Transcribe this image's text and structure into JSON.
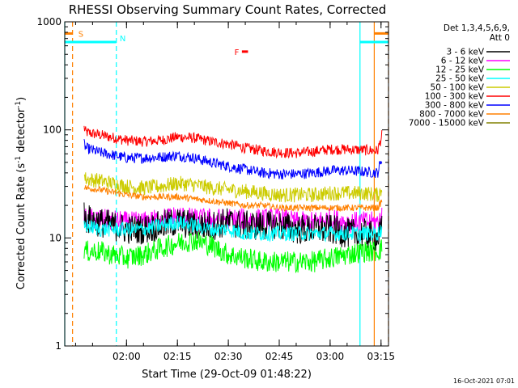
{
  "chart_data": {
    "type": "line",
    "title": "RHESSI Observing Summary Count Rates, Corrected",
    "xlabel": "Start Time (29-Oct-09 01:48:22)",
    "ylabel_main": "Corrected Count Rate (s",
    "ylabel_sup1": "-1",
    "ylabel_mid": " detector",
    "ylabel_sup2": "-1",
    "ylabel_end": ")",
    "y_scale": "log",
    "ylim": [
      1,
      1000
    ],
    "y_ticks": [
      {
        "v": 1,
        "label": "1"
      },
      {
        "v": 10,
        "label": "10"
      },
      {
        "v": 100,
        "label": "100"
      },
      {
        "v": 1000,
        "label": "1000"
      }
    ],
    "xlim_min": [
      1.8,
      97.2
    ],
    "x_ticks": [
      {
        "m": 20,
        "label": "02:00"
      },
      {
        "m": 35,
        "label": "02:15"
      },
      {
        "m": 50,
        "label": "02:30"
      },
      {
        "m": 65,
        "label": "02:45"
      },
      {
        "m": 80,
        "label": "03:00"
      },
      {
        "m": 95,
        "label": "03:15"
      }
    ],
    "x_unit_note": "minutes after 01:40",
    "data_window": [
      7.5,
      95.3
    ],
    "legend": {
      "position": "right",
      "header1": "Det 1,3,4,5,6,9,",
      "header2": "Att 0",
      "entries": [
        {
          "label": "3 - 6 keV",
          "color": "#000000"
        },
        {
          "label": "6 - 12 keV",
          "color": "#ff00ff"
        },
        {
          "label": "12 - 25 keV",
          "color": "#00ff00"
        },
        {
          "label": "25 - 50 keV",
          "color": "#00ffff"
        },
        {
          "label": "50 - 100 keV",
          "color": "#cccc00"
        },
        {
          "label": "100 - 300 keV",
          "color": "#ff0000"
        },
        {
          "label": "300 - 800 keV",
          "color": "#0000ff"
        },
        {
          "label": "800 - 7000 keV",
          "color": "#ff8000"
        },
        {
          "label": "7000 - 15000 keV",
          "color": "#808000"
        }
      ]
    },
    "series": [
      {
        "color": "#ff0000",
        "x": [
          7.5,
          8,
          12,
          20,
          25,
          30,
          35,
          40,
          45,
          50,
          55,
          60,
          65,
          70,
          75,
          80,
          85,
          90,
          94,
          95.3
        ],
        "y": [
          105,
          95,
          90,
          80,
          78,
          80,
          86,
          84,
          78,
          74,
          68,
          64,
          62,
          61,
          63,
          66,
          66,
          65,
          64,
          90
        ],
        "noise": 0.05
      },
      {
        "color": "#0000ff",
        "x": [
          7.5,
          8,
          12,
          20,
          25,
          30,
          35,
          40,
          45,
          50,
          55,
          60,
          65,
          70,
          75,
          80,
          85,
          90,
          94,
          95.3
        ],
        "y": [
          75,
          68,
          62,
          55,
          55,
          56,
          58,
          55,
          50,
          46,
          43,
          40,
          39,
          39,
          40,
          42,
          42,
          41,
          40,
          55
        ],
        "noise": 0.05
      },
      {
        "color": "#cccc00",
        "x": [
          7.5,
          8,
          12,
          20,
          25,
          30,
          35,
          40,
          45,
          50,
          55,
          60,
          65,
          70,
          75,
          80,
          85,
          90,
          94,
          95.3
        ],
        "y": [
          38,
          35,
          34,
          30,
          29,
          30,
          32,
          31,
          29,
          28,
          27,
          26,
          25,
          25,
          25,
          26,
          26,
          26,
          25,
          28
        ],
        "noise": 0.07
      },
      {
        "color": "#ff8000",
        "x": [
          7.5,
          8,
          12,
          20,
          25,
          30,
          35,
          40,
          45,
          50,
          55,
          60,
          65,
          70,
          75,
          80,
          85,
          90,
          94,
          95.3
        ],
        "y": [
          30,
          29,
          28,
          25,
          24,
          24,
          24,
          23,
          22,
          21,
          20,
          20,
          19,
          19,
          19,
          19,
          19,
          19,
          19,
          22
        ],
        "noise": 0.03
      },
      {
        "color": "#ff00ff",
        "x": [
          7.5,
          8,
          12,
          20,
          25,
          30,
          35,
          40,
          45,
          50,
          55,
          60,
          65,
          70,
          75,
          80,
          85,
          90,
          94,
          95.3
        ],
        "y": [
          16,
          15,
          15,
          14,
          14,
          15,
          16,
          15,
          15,
          15,
          15,
          15,
          15,
          14,
          14,
          15,
          14,
          14,
          14,
          16
        ],
        "noise": 0.1
      },
      {
        "color": "#000000",
        "x": [
          7.5,
          8,
          12,
          20,
          25,
          30,
          35,
          40,
          45,
          50,
          55,
          60,
          65,
          70,
          75,
          80,
          85,
          90,
          94,
          95.3
        ],
        "y": [
          17,
          15,
          14,
          12,
          12,
          13,
          14,
          13,
          13,
          14,
          13,
          13,
          13,
          12,
          12,
          12,
          11,
          11,
          10,
          12
        ],
        "noise": 0.14
      },
      {
        "color": "#00ffff",
        "x": [
          7.5,
          8,
          12,
          20,
          25,
          30,
          35,
          40,
          45,
          50,
          55,
          60,
          65,
          70,
          75,
          80,
          85,
          90,
          94,
          95.3
        ],
        "y": [
          13,
          13,
          12,
          12,
          12,
          13,
          14,
          13,
          12,
          12,
          11,
          11,
          11,
          11,
          11,
          11,
          11,
          11,
          11,
          12
        ],
        "noise": 0.07
      },
      {
        "color": "#00ff00",
        "x": [
          7.5,
          8,
          12,
          20,
          25,
          30,
          35,
          40,
          45,
          50,
          55,
          60,
          65,
          70,
          75,
          80,
          85,
          90,
          94,
          95.3
        ],
        "y": [
          8,
          7.5,
          7.5,
          6.5,
          7,
          8,
          9,
          9.5,
          8.5,
          7,
          6.5,
          6,
          6,
          6,
          6,
          6.5,
          7,
          7.5,
          7.5,
          8
        ],
        "noise": 0.1
      }
    ],
    "orbit_markers": {
      "color": "#00ffff",
      "bars": [
        {
          "x0": 1.8,
          "x1": 17.0,
          "y": 650
        },
        {
          "x0": 88.8,
          "x1": 97.2,
          "y": 650
        }
      ],
      "vlines_solid": [
        1.8,
        88.8
      ],
      "vlines_dashed": [
        17.0
      ],
      "N_label": {
        "text": "N",
        "x": 18.0
      }
    },
    "saa_markers": {
      "color": "#ff8000",
      "bars": [
        {
          "x0": 1.8,
          "x1": 4.1,
          "y": 780
        },
        {
          "x0": 93.0,
          "x1": 97.2,
          "y": 780
        }
      ],
      "vlines_dashed": [
        4.1,
        97.2
      ],
      "vlines_solid": [
        93.0
      ],
      "S_label": {
        "text": "S",
        "x": 5.8
      }
    },
    "flare_marker": {
      "label": "F",
      "x0": 54.0,
      "x1": 55.8,
      "label_x": 51.8,
      "y": 530,
      "color": "#ff0000"
    },
    "footer_date": "16-Oct-2021 07:01"
  }
}
